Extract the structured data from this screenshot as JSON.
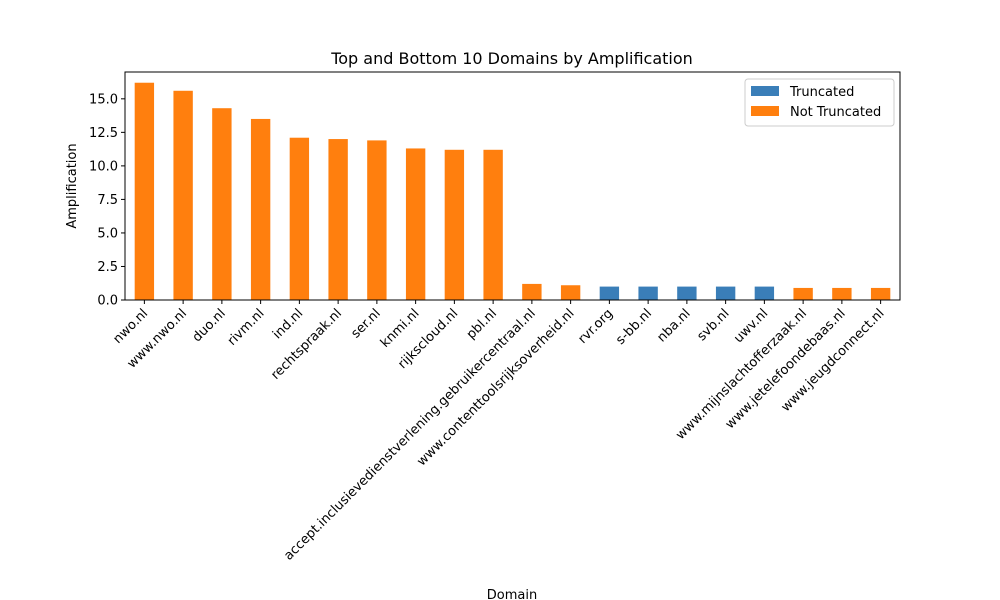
{
  "chart_data": {
    "type": "bar",
    "title": "Top and Bottom 10 Domains by Amplification",
    "xlabel": "Domain",
    "ylabel": "Amplification",
    "ylim": [
      0,
      17
    ],
    "yticks": [
      "0.0",
      "2.5",
      "5.0",
      "7.5",
      "10.0",
      "12.5",
      "15.0"
    ],
    "legend_position": "top-right",
    "grid": false,
    "categories": [
      "nwo.nl",
      "www.nwo.nl",
      "duo.nl",
      "rivm.nl",
      "ind.nl",
      "rechtspraak.nl",
      "ser.nl",
      "knmi.nl",
      "rijkscloud.nl",
      "pbl.nl",
      "accept.inclusievedienstverlening.gebruikercentraal.nl",
      "www.contenttoolsrijksoverheid.nl",
      "rvr.org",
      "s-bb.nl",
      "nba.nl",
      "svb.nl",
      "uwv.nl",
      "www.mijnslachtofferzaak.nl",
      "www.jetelefoondebaas.nl",
      "www.jeugdconnect.nl"
    ],
    "values": [
      16.2,
      15.6,
      14.3,
      13.5,
      12.1,
      12.0,
      11.9,
      11.3,
      11.2,
      11.2,
      1.2,
      1.1,
      1.0,
      1.0,
      1.0,
      1.0,
      1.0,
      0.9,
      0.9,
      0.9
    ],
    "truncated": [
      false,
      false,
      false,
      false,
      false,
      false,
      false,
      false,
      false,
      false,
      false,
      false,
      true,
      true,
      true,
      true,
      true,
      false,
      false,
      false
    ],
    "series": [
      {
        "name": "Truncated",
        "color": "#3a7eb8"
      },
      {
        "name": "Not Truncated",
        "color": "#ff7f0e"
      }
    ]
  }
}
